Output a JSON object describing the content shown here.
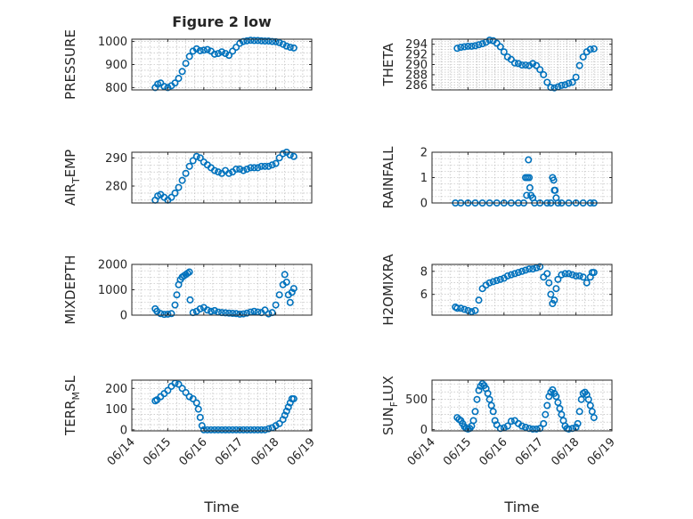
{
  "title": "Figure 2 low",
  "xlabel": "Time",
  "xticks": [
    "06/14",
    "06/15",
    "06/16",
    "06/17",
    "06/18",
    "06/19"
  ],
  "marker_color": "#0072bd",
  "chart_data": [
    {
      "type": "scatter",
      "ylabel": [
        "PRESSURE"
      ],
      "xlim": [
        "06/14",
        "06/19"
      ],
      "ylim": [
        790,
        1010
      ],
      "yticks": [
        800,
        900,
        1000
      ],
      "grid": true,
      "x": [
        14.65,
        14.72,
        14.8,
        14.9,
        15.0,
        15.1,
        15.2,
        15.3,
        15.4,
        15.5,
        15.6,
        15.7,
        15.8,
        15.9,
        16.0,
        16.1,
        16.2,
        16.3,
        16.4,
        16.5,
        16.6,
        16.7,
        16.8,
        16.9,
        17.0,
        17.1,
        17.2,
        17.3,
        17.4,
        17.5,
        17.6,
        17.7,
        17.8,
        17.9,
        18.0,
        18.1,
        18.2,
        18.3,
        18.4,
        18.5
      ],
      "y": [
        800,
        815,
        820,
        805,
        800,
        808,
        820,
        840,
        870,
        905,
        935,
        958,
        968,
        960,
        962,
        965,
        958,
        945,
        948,
        955,
        948,
        940,
        958,
        975,
        992,
        1000,
        1003,
        1005,
        1004,
        1004,
        1003,
        1002,
        1002,
        1000,
        999,
        995,
        988,
        980,
        975,
        972
      ]
    },
    {
      "type": "scatter",
      "ylabel": [
        "THETA"
      ],
      "xlim": [
        "06/14",
        "06/19"
      ],
      "ylim": [
        285,
        295
      ],
      "yticks": [
        286,
        288,
        290,
        292,
        294
      ],
      "grid": true,
      "x": [
        14.7,
        14.8,
        14.9,
        15.0,
        15.1,
        15.2,
        15.3,
        15.4,
        15.5,
        15.6,
        15.7,
        15.8,
        15.9,
        16.0,
        16.1,
        16.2,
        16.3,
        16.4,
        16.5,
        16.6,
        16.7,
        16.8,
        16.9,
        17.0,
        17.1,
        17.2,
        17.3,
        17.4,
        17.5,
        17.6,
        17.7,
        17.8,
        17.9,
        18.0,
        18.1,
        18.2,
        18.3,
        18.4,
        18.5
      ],
      "y": [
        293.2,
        293.4,
        293.5,
        293.6,
        293.6,
        293.7,
        293.9,
        294.1,
        294.4,
        294.8,
        294.7,
        294.2,
        293.5,
        292.5,
        291.5,
        291.0,
        290.3,
        290.2,
        289.9,
        289.9,
        289.8,
        290.2,
        289.8,
        289.0,
        288.0,
        286.5,
        285.5,
        285.4,
        285.6,
        285.9,
        286.0,
        286.3,
        286.5,
        287.5,
        289.8,
        291.5,
        292.5,
        293.0,
        293.1
      ]
    },
    {
      "type": "scatter",
      "ylabel": [
        "AIR",
        "T",
        "EMP"
      ],
      "xlim": [
        "06/14",
        "06/19"
      ],
      "ylim": [
        274,
        292
      ],
      "yticks": [
        280,
        290
      ],
      "grid": true,
      "x": [
        14.65,
        14.72,
        14.8,
        14.9,
        15.0,
        15.1,
        15.2,
        15.3,
        15.4,
        15.5,
        15.6,
        15.7,
        15.8,
        15.9,
        16.0,
        16.1,
        16.2,
        16.3,
        16.4,
        16.5,
        16.6,
        16.7,
        16.8,
        16.9,
        17.0,
        17.1,
        17.2,
        17.3,
        17.4,
        17.5,
        17.6,
        17.7,
        17.8,
        17.9,
        18.0,
        18.1,
        18.2,
        18.3,
        18.4,
        18.5
      ],
      "y": [
        275,
        276.5,
        277,
        276,
        275,
        276,
        277.5,
        279.5,
        282,
        284.5,
        287,
        289,
        290.5,
        290,
        288.5,
        287.5,
        286.5,
        285.5,
        285,
        284.5,
        285.5,
        284.5,
        285,
        286,
        286,
        285.5,
        286,
        286.5,
        286.5,
        286.5,
        287,
        287,
        287,
        287.5,
        288,
        290,
        291.5,
        292,
        291,
        290.5
      ]
    },
    {
      "type": "scatter",
      "ylabel": [
        "RAINFALL"
      ],
      "xlim": [
        "06/14",
        "06/19"
      ],
      "ylim": [
        0,
        2
      ],
      "yticks": [
        0,
        1,
        2
      ],
      "grid": true,
      "x": [
        14.65,
        14.8,
        15.0,
        15.2,
        15.4,
        15.6,
        15.8,
        16.0,
        16.2,
        16.4,
        16.55,
        16.6,
        16.63,
        16.65,
        16.68,
        16.7,
        16.72,
        16.75,
        16.8,
        16.85,
        17.0,
        17.2,
        17.3,
        17.35,
        17.38,
        17.4,
        17.42,
        17.45,
        17.5,
        17.6,
        17.8,
        18.0,
        18.2,
        18.4,
        18.5
      ],
      "y": [
        0,
        0,
        0,
        0,
        0,
        0,
        0,
        0,
        0,
        0,
        0,
        1.0,
        0.3,
        1.0,
        1.7,
        1.0,
        0.6,
        0.3,
        0.2,
        0,
        0,
        0,
        0,
        1.0,
        0.9,
        0.5,
        0.5,
        0.2,
        0,
        0,
        0,
        0,
        0,
        0,
        0
      ]
    },
    {
      "type": "scatter",
      "ylabel": [
        "MIXDEPTH"
      ],
      "xlim": [
        "06/14",
        "06/19"
      ],
      "ylim": [
        0,
        2000
      ],
      "yticks": [
        0,
        1000,
        2000
      ],
      "grid": true,
      "x": [
        14.65,
        14.7,
        14.8,
        14.9,
        15.0,
        15.1,
        15.2,
        15.25,
        15.3,
        15.35,
        15.4,
        15.45,
        15.5,
        15.55,
        15.6,
        15.62,
        15.7,
        15.8,
        15.9,
        16.0,
        16.1,
        16.2,
        16.3,
        16.4,
        16.5,
        16.6,
        16.7,
        16.8,
        16.9,
        17.0,
        17.1,
        17.2,
        17.3,
        17.4,
        17.5,
        17.6,
        17.7,
        17.8,
        17.9,
        18.0,
        18.1,
        18.2,
        18.25,
        18.3,
        18.35,
        18.4,
        18.45,
        18.5
      ],
      "y": [
        250,
        150,
        60,
        30,
        40,
        60,
        400,
        800,
        1200,
        1400,
        1500,
        1550,
        1600,
        1650,
        1700,
        600,
        100,
        150,
        250,
        300,
        200,
        150,
        180,
        120,
        100,
        90,
        80,
        70,
        60,
        40,
        50,
        80,
        120,
        150,
        120,
        100,
        200,
        50,
        100,
        400,
        800,
        1200,
        1600,
        1300,
        800,
        500,
        900,
        1050
      ]
    },
    {
      "type": "scatter",
      "ylabel": [
        "H2OMIXRA"
      ],
      "xlim": [
        "06/14",
        "06/19"
      ],
      "ylim": [
        4.2,
        8.6
      ],
      "yticks": [
        6,
        8
      ],
      "grid": true,
      "x": [
        14.65,
        14.7,
        14.8,
        14.9,
        15.0,
        15.1,
        15.2,
        15.3,
        15.4,
        15.5,
        15.6,
        15.7,
        15.8,
        15.9,
        16.0,
        16.1,
        16.2,
        16.3,
        16.4,
        16.5,
        16.6,
        16.7,
        16.8,
        16.9,
        17.0,
        17.1,
        17.2,
        17.25,
        17.3,
        17.35,
        17.4,
        17.45,
        17.5,
        17.6,
        17.7,
        17.8,
        17.9,
        18.0,
        18.1,
        18.2,
        18.3,
        18.4,
        18.45,
        18.5
      ],
      "y": [
        4.9,
        4.8,
        4.8,
        4.7,
        4.6,
        4.5,
        4.6,
        5.5,
        6.5,
        6.8,
        7.0,
        7.1,
        7.2,
        7.3,
        7.4,
        7.6,
        7.7,
        7.8,
        7.9,
        8.0,
        8.1,
        8.2,
        8.2,
        8.3,
        8.4,
        7.5,
        7.8,
        7.0,
        6.0,
        5.2,
        5.5,
        6.5,
        7.3,
        7.7,
        7.8,
        7.8,
        7.7,
        7.6,
        7.6,
        7.5,
        7.0,
        7.5,
        7.9,
        7.9
      ]
    },
    {
      "type": "scatter",
      "ylabel": [
        "TERR",
        "M",
        "SL"
      ],
      "xlim": [
        "06/14",
        "06/19"
      ],
      "ylim": [
        -5,
        240
      ],
      "yticks": [
        0,
        100,
        200
      ],
      "grid": true,
      "x": [
        14.65,
        14.7,
        14.8,
        14.9,
        15.0,
        15.1,
        15.2,
        15.3,
        15.4,
        15.5,
        15.6,
        15.7,
        15.8,
        15.85,
        15.9,
        15.95,
        16.0,
        16.1,
        16.2,
        16.3,
        16.4,
        16.5,
        16.6,
        16.7,
        16.8,
        16.9,
        17.0,
        17.1,
        17.2,
        17.3,
        17.4,
        17.5,
        17.6,
        17.7,
        17.8,
        17.9,
        18.0,
        18.1,
        18.2,
        18.25,
        18.3,
        18.35,
        18.4,
        18.45,
        18.5
      ],
      "y": [
        140,
        145,
        160,
        175,
        190,
        210,
        225,
        220,
        200,
        180,
        160,
        150,
        130,
        100,
        60,
        20,
        0,
        0,
        0,
        0,
        0,
        0,
        0,
        0,
        0,
        0,
        0,
        0,
        0,
        0,
        0,
        0,
        0,
        0,
        5,
        10,
        20,
        30,
        50,
        70,
        90,
        110,
        130,
        150,
        150
      ]
    },
    {
      "type": "scatter",
      "ylabel": [
        "SUN",
        "F",
        "LUX"
      ],
      "xlim": [
        "06/14",
        "06/19"
      ],
      "ylim": [
        -20,
        820
      ],
      "yticks": [
        0,
        500
      ],
      "grid": true,
      "x": [
        14.7,
        14.75,
        14.8,
        14.85,
        14.9,
        14.95,
        15.0,
        15.05,
        15.1,
        15.15,
        15.2,
        15.25,
        15.3,
        15.35,
        15.4,
        15.45,
        15.5,
        15.55,
        15.6,
        15.65,
        15.7,
        15.75,
        15.8,
        15.9,
        16.0,
        16.1,
        16.2,
        16.3,
        16.4,
        16.5,
        16.6,
        16.7,
        16.8,
        16.9,
        17.0,
        17.1,
        17.15,
        17.2,
        17.25,
        17.3,
        17.35,
        17.4,
        17.45,
        17.5,
        17.55,
        17.6,
        17.65,
        17.7,
        17.75,
        17.8,
        17.9,
        18.0,
        18.05,
        18.1,
        18.15,
        18.2,
        18.25,
        18.3,
        18.35,
        18.4,
        18.45,
        18.5
      ],
      "y": [
        200,
        170,
        150,
        100,
        50,
        20,
        10,
        20,
        60,
        150,
        300,
        500,
        650,
        720,
        760,
        730,
        680,
        600,
        500,
        400,
        300,
        150,
        80,
        20,
        30,
        60,
        140,
        150,
        100,
        60,
        40,
        20,
        10,
        10,
        20,
        100,
        250,
        400,
        550,
        620,
        660,
        600,
        550,
        450,
        350,
        250,
        150,
        60,
        20,
        10,
        20,
        40,
        100,
        300,
        500,
        600,
        620,
        580,
        500,
        400,
        300,
        200
      ]
    }
  ]
}
